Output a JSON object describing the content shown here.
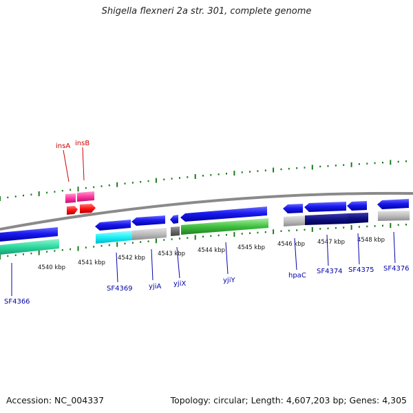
{
  "title": "Shigella flexneri 2a str. 301, complete genome",
  "footer": {
    "accession": "Accession: NC_004337",
    "summary": "Topology: circular; Length: 4,607,203 bp; Genes: 4,305"
  },
  "colors": {
    "backbone": "#888888",
    "tick": "#1a7a1a",
    "label_blue": "#0000aa",
    "label_red": "#cc0000"
  },
  "kbp_labels": [
    "4540 kbp",
    "4541 kbp",
    "4542 kbp",
    "4543 kbp",
    "4544 kbp",
    "4545 kbp",
    "4546 kbp",
    "4547 kbp",
    "4548 kbp"
  ],
  "genes": [
    {
      "name": "SF4366",
      "label": "SF4366",
      "color": "#0000aa"
    },
    {
      "name": "SF4369",
      "label": "SF4369",
      "color": "#0000aa"
    },
    {
      "name": "yjiA",
      "label": "yjiA",
      "color": "#0000aa"
    },
    {
      "name": "yjiX",
      "label": "yjiX",
      "color": "#0000aa"
    },
    {
      "name": "yjiY",
      "label": "yjiY",
      "color": "#0000aa"
    },
    {
      "name": "hpaC",
      "label": "hpaC",
      "color": "#0000aa"
    },
    {
      "name": "SF4374",
      "label": "SF4374",
      "color": "#0000aa"
    },
    {
      "name": "SF4375",
      "label": "SF4375",
      "color": "#0000aa"
    },
    {
      "name": "SF4376",
      "label": "SF4376",
      "color": "#0000aa"
    },
    {
      "name": "insA",
      "label": "insA",
      "color": "#cc0000"
    },
    {
      "name": "insB",
      "label": "insB",
      "color": "#cc0000"
    }
  ]
}
